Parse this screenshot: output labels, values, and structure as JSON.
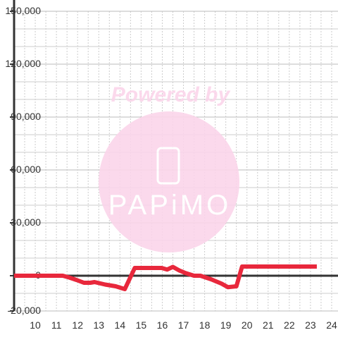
{
  "chart_data": {
    "type": "line",
    "watermark": {
      "top": "Powered by",
      "logo": "PAPiMO"
    },
    "xlim": [
      9,
      24.3
    ],
    "xticks": [
      10,
      11,
      12,
      13,
      14,
      15,
      16,
      17,
      18,
      19,
      20,
      21,
      22,
      23,
      24
    ],
    "xticks_minor": [
      9.5,
      10.5,
      11.5,
      12.5,
      13.5,
      14.5,
      15.5,
      16.5,
      17.5,
      18.5,
      19.5,
      20.5,
      21.5,
      22.5,
      23.5
    ],
    "ylim": [
      -20000,
      150000
    ],
    "yticks": [
      {
        "value": -20000,
        "label": "-20,000"
      },
      0,
      {
        "value": 30000,
        "label": "30,000"
      },
      {
        "value": 60000,
        "label": "60,000"
      },
      {
        "value": 90000,
        "label": "90,000"
      },
      {
        "value": 120000,
        "label": "120,000"
      },
      {
        "value": 150000,
        "label": "150,000"
      }
    ],
    "yticks_minor": [
      -10000,
      10000,
      20000,
      40000,
      50000,
      70000,
      80000,
      100000,
      110000,
      130000,
      140000
    ],
    "grid": true,
    "series": [
      {
        "color": "#e8283c",
        "x": [
          9,
          11.3,
          11.6,
          11.97,
          12.3,
          12.6,
          12.8,
          13.3,
          13.8,
          14.23,
          14.7,
          15.97,
          16.23,
          16.5,
          16.8,
          17.1,
          17.5,
          17.8,
          18.3,
          18.8,
          19.1,
          19.5,
          19.77,
          23.3
        ],
        "values": [
          0,
          0,
          -1000,
          -2500,
          -4000,
          -4000,
          -3600,
          -5000,
          -6000,
          -7600,
          4400,
          4400,
          3500,
          5000,
          3000,
          1500,
          0,
          0,
          -2000,
          -4500,
          -6500,
          -6000,
          5200,
          5200
        ]
      }
    ]
  }
}
